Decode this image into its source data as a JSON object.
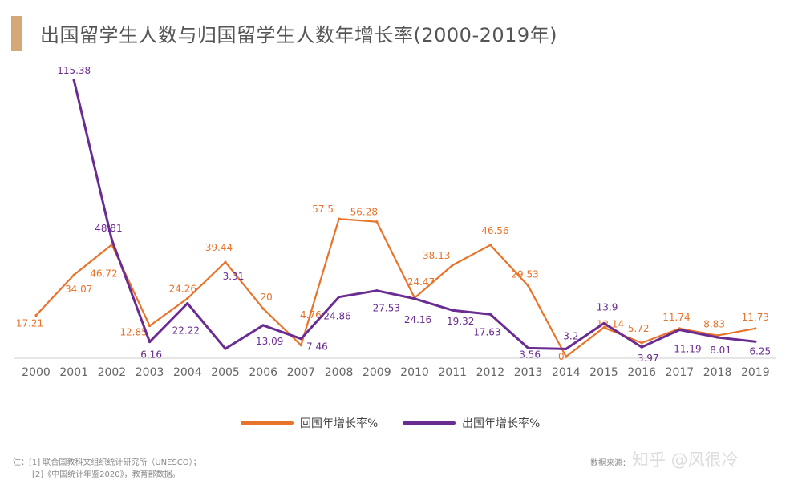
{
  "title": "出国留学生人数与归国留学生人数年增长率(2000-2019年)",
  "notes": {
    "line1": "注：[1] 联合国教科文组织统计研究所（UNESCO）；",
    "line2": "[2]《中国统计年鉴2020》，教育部数据。"
  },
  "source": "数据来源：",
  "watermark": "知乎 @风很冷",
  "colors": {
    "return": "#e8732a",
    "outbound": "#6a2c91",
    "accent": "#d5a877",
    "axis": "#cccccc",
    "tick": "#666666"
  },
  "chart_data": {
    "type": "line",
    "title": "出国留学生人数与归国留学生人数年增长率(2000-2019年)",
    "categories": [
      "2000",
      "2001",
      "2002",
      "2003",
      "2004",
      "2005",
      "2006",
      "2007",
      "2008",
      "2009",
      "2010",
      "2011",
      "2012",
      "2013",
      "2014",
      "2015",
      "2016",
      "2017",
      "2018",
      "2019"
    ],
    "legend_position": "bottom",
    "grid": false,
    "series": [
      {
        "name": "回国年增长率%",
        "color": "#e8732a",
        "values": [
          17.21,
          34.07,
          46.72,
          12.85,
          24.26,
          39.44,
          20,
          4.76,
          57.5,
          56.28,
          24.47,
          38.13,
          46.56,
          29.53,
          0,
          12.14,
          5.72,
          11.74,
          8.83,
          11.73
        ]
      },
      {
        "name": "出国年增长率%",
        "color": "#6a2c91",
        "values": [
          null,
          115.38,
          48.81,
          6.16,
          22.22,
          3.31,
          13.09,
          7.46,
          24.86,
          27.53,
          24.16,
          19.32,
          17.63,
          3.56,
          3.2,
          13.9,
          3.97,
          11.19,
          8.01,
          6.25
        ]
      }
    ]
  }
}
